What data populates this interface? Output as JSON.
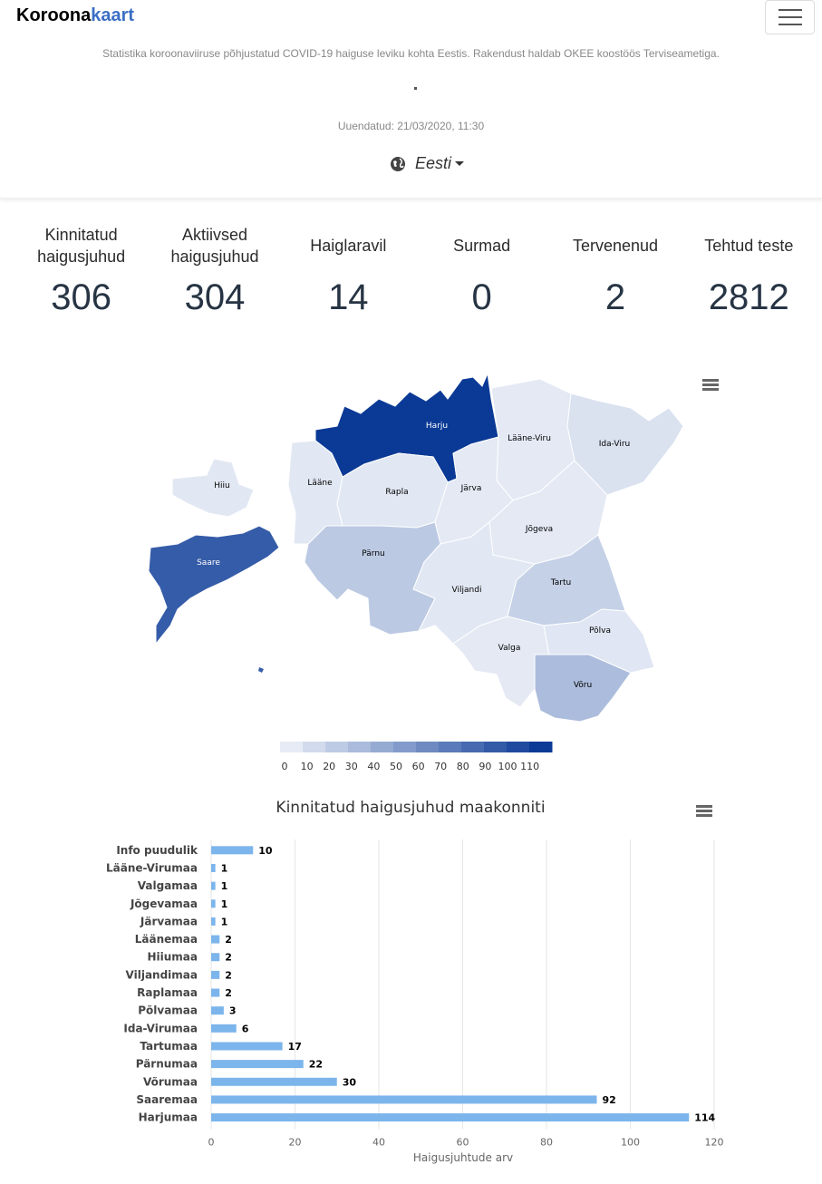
{
  "header": {
    "brand_part1": "Koroona",
    "brand_part2": "kaart",
    "tagline": "Statistika koroonaviiruse põhjustatud COVID-19 haiguse leviku kohta Eestis. Rakendust haldab OKEE koostöös Terviseametiga.",
    "updated": "Uuendatud: 21/03/2020, 11:30",
    "language": "Eesti",
    "icons": {
      "menu": "hamburger-menu-icon",
      "language": "globe-icon"
    }
  },
  "stats": [
    {
      "label": "Kinnitatud haigusjuhud",
      "value": "306"
    },
    {
      "label": "Aktiivsed haigusjuhud",
      "value": "304"
    },
    {
      "label": "Haiglaravil",
      "value": "14"
    },
    {
      "label": "Surmad",
      "value": "0"
    },
    {
      "label": "Tervenenud",
      "value": "2"
    },
    {
      "label": "Tehtud teste",
      "value": "2812"
    }
  ],
  "map": {
    "regions": [
      {
        "name": "Harju",
        "value": 114
      },
      {
        "name": "Lääne-Viru",
        "value": 1
      },
      {
        "name": "Ida-Viru",
        "value": 6
      },
      {
        "name": "Hiiu",
        "value": 2
      },
      {
        "name": "Lääne",
        "value": 2
      },
      {
        "name": "Rapla",
        "value": 2
      },
      {
        "name": "Järva",
        "value": 1
      },
      {
        "name": "Saare",
        "value": 92
      },
      {
        "name": "Jõgeva",
        "value": 1
      },
      {
        "name": "Pärnu",
        "value": 22
      },
      {
        "name": "Viljandi",
        "value": 2
      },
      {
        "name": "Tartu",
        "value": 17
      },
      {
        "name": "Põlva",
        "value": 3
      },
      {
        "name": "Valga",
        "value": 1
      },
      {
        "name": "Võru",
        "value": 30
      }
    ],
    "legend_ticks": [
      "0",
      "10",
      "20",
      "30",
      "40",
      "50",
      "60",
      "70",
      "80",
      "90",
      "100",
      "110"
    ],
    "colors": {
      "low": "#e6ebf5",
      "high": "#0b3a96"
    }
  },
  "chart_data": {
    "type": "bar",
    "orientation": "horizontal",
    "title": "Kinnitatud haigusjuhud maakonniti",
    "xlabel": "Haigusjuhtude arv",
    "ylabel": "",
    "categories": [
      "Info puudulik",
      "Lääne-Virumaa",
      "Valgamaa",
      "Jõgevamaa",
      "Järvamaa",
      "Läänemaa",
      "Hiiumaa",
      "Viljandimaa",
      "Raplamaa",
      "Põlvamaa",
      "Ida-Virumaa",
      "Tartumaa",
      "Pärnumaa",
      "Võrumaa",
      "Saaremaa",
      "Harjumaa"
    ],
    "values": [
      10,
      1,
      1,
      1,
      1,
      2,
      2,
      2,
      2,
      3,
      6,
      17,
      22,
      30,
      92,
      114
    ],
    "xlim": [
      0,
      120
    ],
    "xticks": [
      0,
      20,
      40,
      60,
      80,
      100,
      120
    ],
    "grid": true,
    "bar_color": "#7cb5ec"
  }
}
